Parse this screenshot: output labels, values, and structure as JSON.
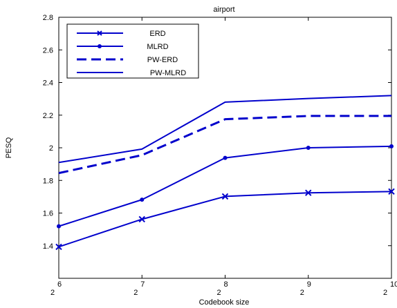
{
  "chart_data": {
    "type": "line",
    "title": "airport",
    "xlabel": "Codebook size",
    "ylabel": "PESQ",
    "x_tick_base": "2",
    "x_exponents": [
      "6",
      "7",
      "8",
      "9",
      "10"
    ],
    "ylim": [
      1.2,
      2.8
    ],
    "y_ticks": [
      "1.4",
      "1.6",
      "1.8",
      "2",
      "2.2",
      "2.4",
      "2.6",
      "2.8"
    ],
    "grid": false,
    "legend_position": "top-left",
    "series": [
      {
        "name": "ERD",
        "values": [
          1.393,
          1.562,
          1.702,
          1.724,
          1.732
        ],
        "style": "solid",
        "marker": "x",
        "color": "#0000cc"
      },
      {
        "name": "MLRD",
        "values": [
          1.519,
          1.682,
          1.938,
          2.0,
          2.009
        ],
        "style": "solid",
        "marker": "dot",
        "color": "#0000cc"
      },
      {
        "name": "PW-ERD",
        "values": [
          1.845,
          1.955,
          2.175,
          2.195,
          2.195
        ],
        "style": "dashed",
        "marker": "none",
        "color": "#0000cc"
      },
      {
        "name": "PW-MLRD",
        "values": [
          1.91,
          1.992,
          2.28,
          2.302,
          2.32
        ],
        "style": "solid",
        "marker": "none",
        "color": "#0000cc"
      }
    ]
  }
}
